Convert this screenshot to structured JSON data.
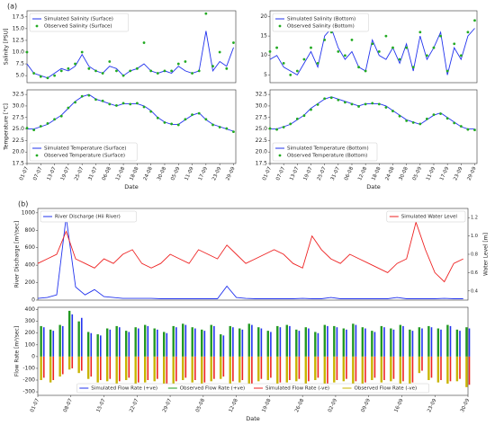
{
  "chart_data": [
    {
      "type": "line",
      "annotation": "(a)",
      "ylabel": "Salinity [PSU]",
      "legend": "upper left",
      "x": [
        "01-07",
        "04-07",
        "07-07",
        "10-07",
        "13-07",
        "16-07",
        "19-07",
        "22-07",
        "25-07",
        "28-07",
        "31-07",
        "03-08",
        "06-08",
        "09-08",
        "12-08",
        "15-08",
        "18-08",
        "21-08",
        "24-08",
        "27-08",
        "30-08",
        "02-09",
        "05-09",
        "08-09",
        "11-09",
        "14-09",
        "17-09",
        "20-09",
        "23-09",
        "26-09",
        "29-09"
      ],
      "xlim": [
        "01-07",
        "30-09"
      ],
      "ylim": [
        3.5,
        18.8
      ],
      "yticks": [
        {
          "value": 5,
          "label": "5.0"
        },
        7.5,
        {
          "value": 10,
          "label": "10.0"
        },
        12.5,
        {
          "value": 15,
          "label": "15.0"
        },
        17.5
      ],
      "series": [
        {
          "name": "Simulated Salinity (Surface)",
          "type": "line",
          "color": "#2233ee",
          "values": [
            7.5,
            5.5,
            5.0,
            4.5,
            5.5,
            6.5,
            6,
            7,
            9.5,
            7,
            6,
            5.5,
            7,
            6.5,
            5,
            6,
            6.5,
            7.5,
            6,
            5.5,
            6,
            5.5,
            7,
            6,
            5.5,
            6,
            14.5,
            6,
            8,
            7,
            11
          ]
        },
        {
          "name": "Observed Salinity (Surface)",
          "type": "scatter",
          "color": "#22aa22",
          "values": [
            10,
            5.5,
            4.8,
            4.5,
            5,
            6,
            6.5,
            7.5,
            10,
            6.5,
            6,
            5.5,
            8,
            6,
            5,
            6,
            6.5,
            12,
            6,
            5.5,
            6,
            6,
            7.5,
            8,
            5.5,
            6,
            18.2,
            7,
            10,
            6.5,
            12
          ]
        }
      ]
    },
    {
      "type": "line",
      "legend": "upper left",
      "x": [
        "01-07",
        "04-07",
        "07-07",
        "10-07",
        "13-07",
        "16-07",
        "19-07",
        "22-07",
        "25-07",
        "28-07",
        "31-07",
        "03-08",
        "06-08",
        "09-08",
        "12-08",
        "15-08",
        "18-08",
        "21-08",
        "24-08",
        "27-08",
        "30-08",
        "02-09",
        "05-09",
        "08-09",
        "11-09",
        "14-09",
        "17-09",
        "20-09",
        "23-09",
        "26-09",
        "29-09"
      ],
      "xlim": [
        "01-07",
        "30-09"
      ],
      "ylim": [
        3,
        21.5
      ],
      "yticks": [
        5,
        10,
        15,
        20
      ],
      "series": [
        {
          "name": "Simulated Salinity (Bottom)",
          "type": "line",
          "color": "#2233ee",
          "values": [
            9,
            10,
            7,
            6,
            5,
            8,
            11,
            7,
            15,
            17,
            12,
            9,
            11,
            7,
            6,
            14,
            10,
            9,
            12,
            8,
            13,
            6,
            15,
            9,
            12,
            16,
            5,
            12,
            9,
            15,
            17
          ]
        },
        {
          "name": "Observed Salinity (Bottom)",
          "type": "scatter",
          "color": "#22aa22",
          "values": [
            11,
            12,
            8,
            5,
            6,
            9,
            12,
            8,
            14,
            16,
            11,
            10,
            14,
            7,
            6,
            13,
            11,
            15,
            12,
            9,
            12,
            7,
            16,
            10,
            12,
            15,
            6,
            13,
            10,
            16,
            19
          ]
        }
      ]
    },
    {
      "type": "line",
      "ylabel": "Temperature [°C]",
      "xlabel": "Date",
      "legend": "lower left",
      "x": [
        "01-07",
        "04-07",
        "07-07",
        "10-07",
        "13-07",
        "16-07",
        "19-07",
        "22-07",
        "25-07",
        "28-07",
        "31-07",
        "03-08",
        "06-08",
        "09-08",
        "12-08",
        "15-08",
        "18-08",
        "21-08",
        "24-08",
        "27-08",
        "30-08",
        "02-09",
        "05-09",
        "08-09",
        "11-09",
        "14-09",
        "17-09",
        "20-09",
        "23-09",
        "26-09",
        "29-09"
      ],
      "xlim": [
        "01-07",
        "30-09"
      ],
      "ylim": [
        17.5,
        33.5
      ],
      "yticks": [
        17.5,
        {
          "value": 20,
          "label": "20.0"
        },
        22.5,
        {
          "value": 25,
          "label": "25.0"
        },
        27.5,
        {
          "value": 30,
          "label": "30.0"
        },
        32.5
      ],
      "xticks": [
        "01-07",
        "07-07",
        "13-07",
        "19-07",
        "25-07",
        "31-07",
        "06-08",
        "12-08",
        "18-08",
        "24-08",
        "30-08",
        "05-09",
        "11-09",
        "17-09",
        "23-09",
        "29-09"
      ],
      "series": [
        {
          "name": "Simulated Temperature (Surface)",
          "type": "line",
          "color": "#2233ee",
          "values": [
            25,
            25,
            25.5,
            26,
            27,
            28,
            29.5,
            31,
            32,
            32.5,
            31.5,
            31,
            30.5,
            30,
            30.5,
            30.5,
            30.5,
            30,
            29,
            27.5,
            26.5,
            26,
            26,
            27,
            28,
            28.5,
            27,
            26,
            25.5,
            25,
            24.5
          ]
        },
        {
          "name": "Observed Temperature (Surface)",
          "type": "scatter",
          "color": "#22aa22",
          "values": [
            25.2,
            24.8,
            25.6,
            26.2,
            27.1,
            27.8,
            29.6,
            30.8,
            32.1,
            32.3,
            31.4,
            31.1,
            30.4,
            30.1,
            30.6,
            30.4,
            30.6,
            29.8,
            28.8,
            27.4,
            26.4,
            26.1,
            25.9,
            27.1,
            28.1,
            28.4,
            27.1,
            25.9,
            25.4,
            25.1,
            24.4
          ]
        }
      ]
    },
    {
      "type": "line",
      "xlabel": "Date",
      "legend": "lower left",
      "x": [
        "01-07",
        "04-07",
        "07-07",
        "10-07",
        "13-07",
        "16-07",
        "19-07",
        "22-07",
        "25-07",
        "28-07",
        "31-07",
        "03-08",
        "06-08",
        "09-08",
        "12-08",
        "15-08",
        "18-08",
        "21-08",
        "24-08",
        "27-08",
        "30-08",
        "02-09",
        "05-09",
        "08-09",
        "11-09",
        "14-09",
        "17-09",
        "20-09",
        "23-09",
        "26-09",
        "29-09"
      ],
      "xlim": [
        "01-07",
        "30-09"
      ],
      "ylim": [
        17.5,
        33.5
      ],
      "yticks": [
        17.5,
        {
          "value": 20,
          "label": "20.0"
        },
        22.5,
        {
          "value": 25,
          "label": "25.0"
        },
        27.5,
        {
          "value": 30,
          "label": "30.0"
        },
        32.5
      ],
      "xticks": [
        "01-07",
        "07-07",
        "13-07",
        "19-07",
        "25-07",
        "31-07",
        "06-08",
        "12-08",
        "18-08",
        "24-08",
        "30-08",
        "05-09",
        "11-09",
        "17-09",
        "23-09",
        "29-09"
      ],
      "series": [
        {
          "name": "Simulated Temperature (Bottom)",
          "type": "line",
          "color": "#2233ee",
          "values": [
            25,
            25,
            25.5,
            26,
            27,
            28,
            29.5,
            30.5,
            31.5,
            32,
            31.5,
            31,
            30.5,
            30,
            30.5,
            30.5,
            30.5,
            30,
            29,
            28,
            27,
            26.5,
            26,
            27,
            28,
            28.5,
            27.5,
            26.5,
            25.5,
            25,
            25
          ]
        },
        {
          "name": "Observed Temperature (Bottom)",
          "type": "scatter",
          "color": "#22aa22",
          "values": [
            25.1,
            24.9,
            25.4,
            26.1,
            27.2,
            27.9,
            29.2,
            30.3,
            31.6,
            31.8,
            31.3,
            30.8,
            30.4,
            29.9,
            30.4,
            30.6,
            30.4,
            29.7,
            28.9,
            27.8,
            26.8,
            26.4,
            26.1,
            27.2,
            28.1,
            28.3,
            27.3,
            26.3,
            25.6,
            24.9,
            24.8
          ]
        }
      ]
    },
    {
      "type": "line",
      "annotation": "(b)",
      "ylabel": "River Discharge [m³/sec]",
      "y2label": "Water Level [m]",
      "x": [
        "01-07",
        "03-07",
        "05-07",
        "07-07",
        "09-07",
        "11-07",
        "13-07",
        "15-07",
        "17-07",
        "19-07",
        "21-07",
        "23-07",
        "25-07",
        "27-07",
        "29-07",
        "31-07",
        "02-08",
        "04-08",
        "06-08",
        "08-08",
        "10-08",
        "12-08",
        "14-08",
        "16-08",
        "18-08",
        "20-08",
        "22-08",
        "24-08",
        "26-08",
        "28-08",
        "30-08",
        "01-09",
        "03-09",
        "05-09",
        "07-09",
        "09-09",
        "11-09",
        "13-09",
        "15-09",
        "17-09",
        "19-09",
        "21-09",
        "23-09",
        "25-09",
        "27-09",
        "29-09"
      ],
      "xlim": [
        "01-07",
        "30-09"
      ],
      "ylim": [
        0,
        1050
      ],
      "yticks": [
        0,
        200,
        400,
        600,
        800,
        1000
      ],
      "y2lim": [
        0.3,
        1.3
      ],
      "y2ticks": [
        0.4,
        0.6,
        0.8,
        {
          "value": 1,
          "label": "1.0"
        },
        1.2
      ],
      "series": [
        {
          "name": "River Discharge (Hii River)",
          "type": "line",
          "color": "#2233ee",
          "legend": "upper left",
          "values": [
            20,
            30,
            60,
            950,
            150,
            60,
            120,
            40,
            30,
            20,
            20,
            20,
            20,
            15,
            15,
            15,
            15,
            15,
            15,
            15,
            160,
            30,
            20,
            15,
            15,
            15,
            15,
            15,
            20,
            15,
            15,
            30,
            15,
            15,
            15,
            15,
            15,
            15,
            30,
            15,
            15,
            15,
            15,
            20,
            15,
            15
          ]
        },
        {
          "name": "Simulated Water Level",
          "type": "line",
          "color": "#ee2222",
          "axis": "y2",
          "legend": "upper right",
          "values": [
            0.7,
            0.75,
            0.8,
            1.05,
            0.75,
            0.7,
            0.65,
            0.75,
            0.7,
            0.8,
            0.85,
            0.7,
            0.65,
            0.7,
            0.8,
            0.75,
            0.7,
            0.85,
            0.8,
            0.75,
            0.9,
            0.8,
            0.7,
            0.75,
            0.8,
            0.85,
            0.8,
            0.7,
            0.65,
            1.0,
            0.85,
            0.75,
            0.7,
            0.8,
            0.75,
            0.7,
            0.65,
            0.6,
            0.7,
            0.75,
            1.15,
            0.85,
            0.6,
            0.5,
            0.7,
            0.75
          ]
        }
      ]
    },
    {
      "type": "bar",
      "ylabel": "Flow Rate [m³/sec]",
      "xlabel": "Date",
      "legend": "lower center",
      "x": [
        "01-07",
        "03-07",
        "05-07",
        "07-07",
        "09-07",
        "11-07",
        "13-07",
        "15-07",
        "17-07",
        "19-07",
        "21-07",
        "23-07",
        "25-07",
        "27-07",
        "29-07",
        "31-07",
        "02-08",
        "04-08",
        "06-08",
        "08-08",
        "10-08",
        "12-08",
        "14-08",
        "16-08",
        "18-08",
        "20-08",
        "22-08",
        "24-08",
        "26-08",
        "28-08",
        "30-08",
        "01-09",
        "03-09",
        "05-09",
        "07-09",
        "09-09",
        "11-09",
        "13-09",
        "15-09",
        "17-09",
        "19-09",
        "21-09",
        "23-09",
        "25-09",
        "27-09",
        "29-09"
      ],
      "xlim": [
        "01-07",
        "30-09"
      ],
      "ylim": [
        -330,
        420
      ],
      "yticks": [
        -300,
        -200,
        -100,
        0,
        100,
        200,
        300,
        400
      ],
      "xticks": [
        "01-07",
        "08-07",
        "15-07",
        "22-07",
        "29-07",
        "05-08",
        "12-08",
        "19-08",
        "26-08",
        "02-09",
        "09-09",
        "16-09",
        "23-09",
        "30-09"
      ],
      "series": [
        {
          "name": "Simulated Flow Rate (+ve)",
          "color": "#2233ee",
          "values": [
            250,
            220,
            260,
            360,
            330,
            200,
            180,
            230,
            250,
            210,
            240,
            260,
            230,
            200,
            250,
            270,
            240,
            220,
            260,
            180,
            250,
            230,
            270,
            240,
            210,
            250,
            260,
            220,
            240,
            200,
            260,
            250,
            230,
            270,
            240,
            210,
            250,
            230,
            260,
            220,
            240,
            250,
            230,
            260,
            220,
            240
          ]
        },
        {
          "name": "Observed Flow Rate (+ve)",
          "color": "#229922",
          "values": [
            260,
            230,
            270,
            390,
            300,
            210,
            190,
            240,
            260,
            220,
            250,
            270,
            240,
            210,
            260,
            280,
            250,
            230,
            270,
            190,
            260,
            240,
            280,
            250,
            220,
            260,
            270,
            230,
            250,
            210,
            270,
            260,
            240,
            280,
            250,
            220,
            260,
            240,
            270,
            230,
            250,
            260,
            240,
            270,
            230,
            250
          ]
        },
        {
          "name": "Simulated Flow Rate (-ve)",
          "color": "#ee2222",
          "values": [
            -180,
            -200,
            -150,
            -100,
            -120,
            -170,
            -200,
            -190,
            -210,
            -180,
            -220,
            -200,
            -190,
            -230,
            -210,
            -180,
            -200,
            -220,
            -190,
            -170,
            -210,
            -200,
            -230,
            -190,
            -180,
            -220,
            -200,
            -190,
            -210,
            -180,
            -230,
            -200,
            -190,
            -210,
            -220,
            -180,
            -200,
            -190,
            -210,
            -220,
            -120,
            -180,
            -200,
            -210,
            -190,
            -240
          ]
        },
        {
          "name": "Observed Flow Rate (-ve)",
          "color": "#c8b400",
          "values": [
            -200,
            -220,
            -170,
            -110,
            -140,
            -190,
            -220,
            -210,
            -230,
            -200,
            -240,
            -220,
            -210,
            -250,
            -230,
            -200,
            -220,
            -240,
            -210,
            -190,
            -230,
            -220,
            -250,
            -210,
            -200,
            -240,
            -220,
            -210,
            -230,
            -200,
            -250,
            -220,
            -210,
            -230,
            -240,
            -200,
            -220,
            -210,
            -230,
            -240,
            -140,
            -200,
            -220,
            -230,
            -210,
            -260
          ]
        }
      ]
    }
  ]
}
